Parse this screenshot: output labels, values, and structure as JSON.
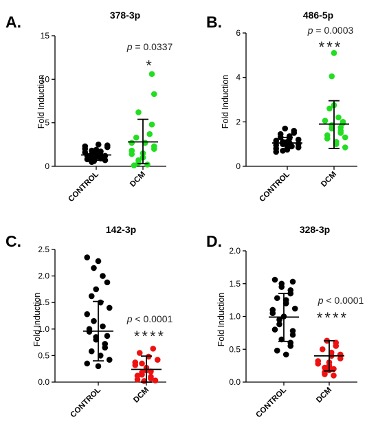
{
  "chart_data": [
    {
      "type": "scatter",
      "panel": "A.",
      "title": "378-3p",
      "ylabel": "Fold Induction",
      "ylim": [
        0,
        15
      ],
      "yticks": [
        "0",
        "5",
        "10",
        "15"
      ],
      "categories": [
        "CONTROL",
        "DCM"
      ],
      "pvalue": {
        "prefix": "p",
        "text": " = 0.0337"
      },
      "stars": "*",
      "series": [
        {
          "category": "CONTROL",
          "color": "#000000",
          "mean": 1.3,
          "sd_low": 0.7,
          "sd_high": 1.9,
          "values": [
            2.5,
            2.4,
            2.3,
            2.2,
            2.0,
            1.9,
            1.8,
            1.7,
            1.6,
            1.5,
            1.4,
            1.3,
            1.2,
            1.1,
            1.0,
            0.9,
            0.8,
            0.7,
            0.6,
            0.5,
            1.0,
            1.2,
            1.5
          ]
        },
        {
          "category": "DCM",
          "color": "#22dd22",
          "mean": 2.8,
          "sd_low": 0.3,
          "sd_high": 5.4,
          "values": [
            10.6,
            8.3,
            6.2,
            4.8,
            3.7,
            3.3,
            2.7,
            2.3,
            2.0,
            1.8,
            1.4,
            1.0,
            0.7,
            0.4,
            0.2,
            2.7,
            1.5,
            0.1
          ]
        }
      ]
    },
    {
      "type": "scatter",
      "panel": "B.",
      "title": "486-5p",
      "ylabel": "Fold Induction",
      "ylim": [
        0,
        6
      ],
      "yticks": [
        "0",
        "2",
        "4",
        "6"
      ],
      "categories": [
        "CONTROL",
        "DCM"
      ],
      "pvalue": {
        "prefix": "p",
        "text": " = 0.0003"
      },
      "stars": "***",
      "series": [
        {
          "category": "CONTROL",
          "color": "#000000",
          "mean": 1.05,
          "sd_low": 0.8,
          "sd_high": 1.3,
          "values": [
            1.7,
            1.6,
            1.5,
            1.45,
            1.35,
            1.3,
            1.25,
            1.2,
            1.15,
            1.1,
            1.05,
            1.0,
            0.95,
            0.9,
            0.85,
            0.8,
            0.75,
            0.7,
            0.65,
            1.0,
            1.1,
            0.9
          ]
        },
        {
          "category": "DCM",
          "color": "#22dd22",
          "mean": 1.9,
          "sd_low": 0.8,
          "sd_high": 2.95,
          "values": [
            5.1,
            4.05,
            2.75,
            2.6,
            2.2,
            2.05,
            1.95,
            1.85,
            1.75,
            1.7,
            1.6,
            1.5,
            1.4,
            1.25,
            1.1,
            1.0,
            0.85,
            2.0,
            1.3
          ]
        }
      ]
    },
    {
      "type": "scatter",
      "panel": "C.",
      "title": "142-3p",
      "ylabel": "Fold Induction",
      "ylim": [
        0,
        2.5
      ],
      "yticks": [
        "0.0",
        "0.5",
        "1.0",
        "1.5",
        "2.0",
        "2.5"
      ],
      "categories": [
        "CONTROL",
        "DCM"
      ],
      "pvalue": {
        "prefix": "p",
        "text": " < 0.0001"
      },
      "stars": "****",
      "series": [
        {
          "category": "CONTROL",
          "color": "#000000",
          "mean": 0.96,
          "sd_low": 0.4,
          "sd_high": 1.52,
          "values": [
            2.35,
            2.28,
            2.15,
            2.0,
            1.88,
            1.75,
            1.62,
            1.5,
            1.4,
            1.28,
            1.15,
            1.05,
            0.95,
            0.87,
            0.8,
            0.72,
            0.65,
            0.58,
            0.5,
            0.42,
            0.35,
            0.3,
            0.85,
            1.0
          ]
        },
        {
          "category": "DCM",
          "color": "#ee1111",
          "mean": 0.24,
          "sd_low": 0.0,
          "sd_high": 0.49,
          "values": [
            0.63,
            0.55,
            0.48,
            0.42,
            0.37,
            0.32,
            0.27,
            0.22,
            0.18,
            0.14,
            0.1,
            0.07,
            0.05,
            0.03,
            0.2,
            0.12,
            0.02,
            0.35
          ]
        }
      ]
    },
    {
      "type": "scatter",
      "panel": "D.",
      "title": "328-3p",
      "ylabel": "Fold Induction",
      "ylim": [
        0,
        2.0
      ],
      "yticks": [
        "0.0",
        "0.5",
        "1.0",
        "1.5",
        "2.0"
      ],
      "categories": [
        "CONTROL",
        "DCM"
      ],
      "pvalue": {
        "prefix": "p",
        "text": " < 0.0001"
      },
      "stars": "****",
      "series": [
        {
          "category": "CONTROL",
          "color": "#000000",
          "mean": 0.99,
          "sd_low": 0.62,
          "sd_high": 1.35,
          "values": [
            1.56,
            1.53,
            1.5,
            1.45,
            1.4,
            1.35,
            1.28,
            1.2,
            1.12,
            1.05,
            1.0,
            0.95,
            0.88,
            0.8,
            0.72,
            0.65,
            0.6,
            0.55,
            0.48,
            0.42,
            1.25,
            0.78,
            1.1
          ]
        },
        {
          "category": "DCM",
          "color": "#ee1111",
          "mean": 0.4,
          "sd_low": 0.17,
          "sd_high": 0.63,
          "values": [
            0.63,
            0.6,
            0.55,
            0.5,
            0.45,
            0.4,
            0.36,
            0.32,
            0.28,
            0.25,
            0.22,
            0.18,
            0.15,
            0.12,
            0.1,
            0.42,
            0.3,
            0.2
          ]
        }
      ]
    }
  ]
}
